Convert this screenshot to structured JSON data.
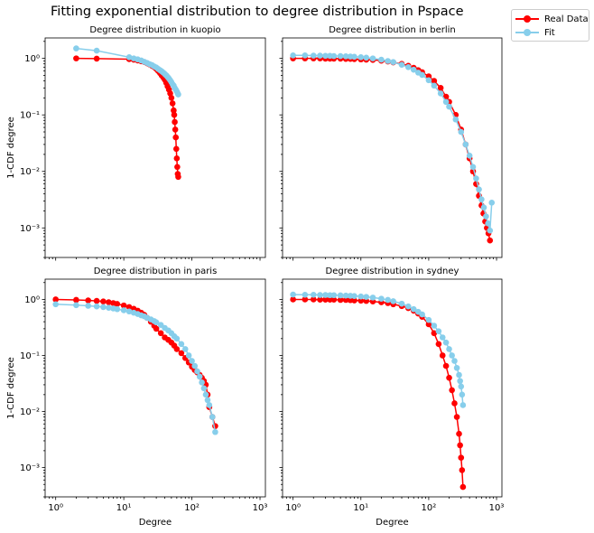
{
  "figure": {
    "suptitle": "Fitting exponential distribution to degree distribution in Pspace",
    "legend": [
      {
        "label": "Real Data",
        "color": "#ff0000"
      },
      {
        "label": "Fit",
        "color": "#87ceeb"
      }
    ]
  },
  "chart_data": [
    {
      "type": "line",
      "title": "Degree distribution in kuopio",
      "xlabel": "",
      "ylabel": "1-CDF degree",
      "xscale": "log",
      "yscale": "log",
      "xlim": [
        0.7,
        1200
      ],
      "ylim": [
        0.0003,
        2.3
      ],
      "series": [
        {
          "name": "Real Data",
          "color": "#ff0000",
          "x": [
            2,
            4,
            12,
            14,
            16,
            18,
            20,
            22,
            24,
            26,
            28,
            30,
            32,
            34,
            36,
            38,
            40,
            42,
            44,
            46,
            48,
            50,
            52,
            54,
            55,
            56,
            57,
            58,
            59,
            60,
            61,
            62,
            63
          ],
          "y": [
            1.0,
            0.99,
            0.97,
            0.95,
            0.92,
            0.89,
            0.86,
            0.82,
            0.78,
            0.74,
            0.7,
            0.65,
            0.6,
            0.55,
            0.5,
            0.46,
            0.42,
            0.37,
            0.32,
            0.28,
            0.24,
            0.2,
            0.16,
            0.12,
            0.1,
            0.075,
            0.055,
            0.04,
            0.025,
            0.017,
            0.012,
            0.009,
            0.008
          ]
        },
        {
          "name": "Fit",
          "color": "#87ceeb",
          "x": [
            2,
            4,
            12,
            14,
            16,
            18,
            20,
            22,
            24,
            26,
            28,
            30,
            32,
            34,
            36,
            38,
            40,
            42,
            44,
            46,
            48,
            50,
            52,
            54,
            56,
            58,
            60,
            62,
            63
          ],
          "y": [
            1.5,
            1.37,
            1.05,
            1.0,
            0.96,
            0.92,
            0.87,
            0.83,
            0.79,
            0.76,
            0.72,
            0.69,
            0.65,
            0.62,
            0.59,
            0.56,
            0.53,
            0.5,
            0.47,
            0.44,
            0.41,
            0.38,
            0.35,
            0.33,
            0.3,
            0.28,
            0.26,
            0.24,
            0.23
          ]
        }
      ]
    },
    {
      "type": "line",
      "title": "Degree distribution in berlin",
      "xlabel": "",
      "ylabel": "",
      "xscale": "log",
      "yscale": "log",
      "xlim": [
        0.7,
        1200
      ],
      "ylim": [
        0.0003,
        2.3
      ],
      "series": [
        {
          "name": "Real Data",
          "color": "#ff0000",
          "x": [
            1,
            1.5,
            2,
            2.5,
            3,
            3.5,
            4,
            5,
            6,
            7,
            8,
            10,
            12,
            15,
            20,
            25,
            30,
            40,
            50,
            60,
            70,
            80,
            100,
            120,
            150,
            180,
            200,
            250,
            300,
            350,
            400,
            450,
            500,
            550,
            600,
            640,
            680,
            720,
            760,
            800
          ],
          "y": [
            1.0,
            1.0,
            1.0,
            1.0,
            0.99,
            0.99,
            0.99,
            0.99,
            0.98,
            0.98,
            0.97,
            0.96,
            0.95,
            0.94,
            0.91,
            0.88,
            0.85,
            0.8,
            0.74,
            0.68,
            0.62,
            0.57,
            0.48,
            0.4,
            0.3,
            0.21,
            0.17,
            0.1,
            0.055,
            0.03,
            0.017,
            0.01,
            0.006,
            0.0037,
            0.0025,
            0.0018,
            0.0013,
            0.001,
            0.0008,
            0.0006
          ]
        },
        {
          "name": "Fit",
          "color": "#87ceeb",
          "x": [
            1,
            1.5,
            2,
            2.5,
            3,
            3.5,
            4,
            5,
            6,
            7,
            8,
            10,
            12,
            15,
            20,
            25,
            30,
            40,
            50,
            60,
            70,
            80,
            100,
            120,
            150,
            180,
            200,
            250,
            300,
            350,
            400,
            450,
            500,
            550,
            600,
            650,
            700,
            750,
            800,
            850
          ],
          "y": [
            1.13,
            1.13,
            1.12,
            1.12,
            1.11,
            1.11,
            1.1,
            1.1,
            1.09,
            1.08,
            1.07,
            1.05,
            1.03,
            1.0,
            0.95,
            0.9,
            0.86,
            0.77,
            0.7,
            0.63,
            0.56,
            0.51,
            0.41,
            0.33,
            0.24,
            0.17,
            0.14,
            0.083,
            0.05,
            0.03,
            0.019,
            0.012,
            0.0075,
            0.0048,
            0.0032,
            0.0023,
            0.0016,
            0.0012,
            0.0009,
            0.0028
          ]
        }
      ]
    },
    {
      "type": "line",
      "title": "Degree distribution in paris",
      "xlabel": "Degree",
      "ylabel": "1-CDF degree",
      "xscale": "log",
      "yscale": "log",
      "xlim": [
        0.7,
        1200
      ],
      "ylim": [
        0.0003,
        2.3
      ],
      "series": [
        {
          "name": "Real Data",
          "color": "#ff0000",
          "x": [
            1,
            2,
            3,
            4,
            5,
            6,
            7,
            8,
            10,
            12,
            14,
            16,
            18,
            20,
            22,
            25,
            28,
            30,
            35,
            40,
            45,
            50,
            55,
            60,
            70,
            80,
            90,
            100,
            110,
            120,
            130,
            140,
            150,
            160,
            170,
            180,
            200,
            220
          ],
          "y": [
            1.0,
            0.98,
            0.96,
            0.94,
            0.92,
            0.89,
            0.86,
            0.83,
            0.78,
            0.73,
            0.68,
            0.63,
            0.58,
            0.53,
            0.47,
            0.4,
            0.34,
            0.3,
            0.25,
            0.21,
            0.19,
            0.17,
            0.15,
            0.13,
            0.11,
            0.09,
            0.075,
            0.063,
            0.055,
            0.05,
            0.045,
            0.04,
            0.035,
            0.03,
            0.02,
            0.012,
            0.008,
            0.0055
          ]
        },
        {
          "name": "Fit",
          "color": "#87ceeb",
          "x": [
            1,
            2,
            3,
            4,
            5,
            6,
            7,
            8,
            10,
            12,
            14,
            16,
            18,
            20,
            22,
            25,
            28,
            30,
            35,
            40,
            45,
            50,
            55,
            60,
            70,
            80,
            90,
            100,
            110,
            120,
            130,
            140,
            150,
            160,
            170,
            180,
            200,
            220
          ],
          "y": [
            0.82,
            0.79,
            0.77,
            0.75,
            0.73,
            0.71,
            0.69,
            0.67,
            0.64,
            0.61,
            0.58,
            0.55,
            0.52,
            0.5,
            0.47,
            0.44,
            0.41,
            0.39,
            0.35,
            0.31,
            0.28,
            0.25,
            0.22,
            0.2,
            0.16,
            0.13,
            0.1,
            0.08,
            0.065,
            0.052,
            0.042,
            0.033,
            0.026,
            0.02,
            0.016,
            0.013,
            0.008,
            0.0043
          ]
        }
      ]
    },
    {
      "type": "line",
      "title": "Degree distribution in sydney",
      "xlabel": "Degree",
      "ylabel": "",
      "xscale": "log",
      "yscale": "log",
      "xlim": [
        0.7,
        1200
      ],
      "ylim": [
        0.0003,
        2.3
      ],
      "series": [
        {
          "name": "Real Data",
          "color": "#ff0000",
          "x": [
            1,
            1.5,
            2,
            2.5,
            3,
            3.5,
            4,
            5,
            6,
            7,
            8,
            10,
            12,
            15,
            20,
            25,
            30,
            40,
            50,
            60,
            70,
            80,
            100,
            120,
            140,
            160,
            180,
            200,
            220,
            240,
            260,
            280,
            290,
            300,
            310,
            320
          ],
          "y": [
            1.0,
            1.0,
            1.0,
            0.99,
            0.99,
            0.99,
            0.99,
            0.98,
            0.98,
            0.97,
            0.96,
            0.95,
            0.94,
            0.92,
            0.89,
            0.86,
            0.82,
            0.76,
            0.7,
            0.63,
            0.56,
            0.49,
            0.36,
            0.25,
            0.16,
            0.1,
            0.065,
            0.04,
            0.024,
            0.014,
            0.008,
            0.004,
            0.0025,
            0.0015,
            0.0009,
            0.00045
          ]
        },
        {
          "name": "Fit",
          "color": "#87ceeb",
          "x": [
            1,
            1.5,
            2,
            2.5,
            3,
            3.5,
            4,
            5,
            6,
            7,
            8,
            10,
            12,
            15,
            20,
            25,
            30,
            40,
            50,
            60,
            70,
            80,
            100,
            120,
            140,
            160,
            180,
            200,
            220,
            240,
            260,
            280,
            290,
            300,
            310,
            320
          ],
          "y": [
            1.22,
            1.21,
            1.21,
            1.2,
            1.2,
            1.19,
            1.19,
            1.18,
            1.17,
            1.16,
            1.15,
            1.13,
            1.11,
            1.08,
            1.03,
            0.98,
            0.93,
            0.84,
            0.75,
            0.67,
            0.6,
            0.54,
            0.43,
            0.34,
            0.27,
            0.21,
            0.17,
            0.13,
            0.1,
            0.08,
            0.06,
            0.045,
            0.035,
            0.028,
            0.02,
            0.013
          ]
        }
      ]
    }
  ]
}
